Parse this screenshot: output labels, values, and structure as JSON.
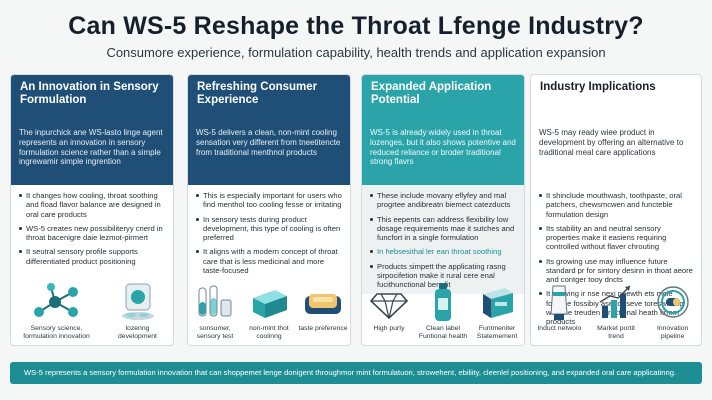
{
  "header": {
    "title": "Can WS-5 Reshape the Throat Lfenge Industry?",
    "subtitle": "Consumore experience, formulation capability, health trends and application expansion"
  },
  "cards": [
    {
      "title": "An Innovation in Sensory Formulation",
      "intro": "The inpurchick ane WS-lasto linge agent represents an innovation in sensory formulation science rather than a simple ingrewamir simple ingrention",
      "bullets": [
        "It changes how cooling, throat soothing and fload flavor balance are designed in oral care products",
        "WS-5 creates new possibiliteryy cnerd in throat bacenigre daie lezmot-pirmert",
        "It seutral sensory profile supports differentiated product positioning"
      ],
      "icons": [
        {
          "name": "molecule-icon",
          "label": "Sensory science, formulation innovation"
        },
        {
          "name": "lozenge-icon",
          "label": "lozenng development"
        }
      ]
    },
    {
      "title": "Refreshing Consumer Experience",
      "intro": "WS-5 delivers a clean, non-mint cooling sensation very different from tneetitencte from traditional menthnol products",
      "bullets": [
        "This is especially important for users who find menthol too cooling fesse or irritating",
        "In sensory tests during product development, this type of cooling is often preferred",
        "It aligns with a modern concept of throat care that is less medicinal and more taste-focused"
      ],
      "icons": [
        {
          "name": "test-tubes-icon",
          "label": "sonsumer, sensory test"
        },
        {
          "name": "cooling-block-icon",
          "label": "non-mint thot coolinng"
        },
        {
          "name": "lozenge-bar-icon",
          "label": "taste preference"
        }
      ]
    },
    {
      "title": "Expanded Application Potential",
      "intro": "WS-5 is already widely used in throat lozenges, but it also shows potentive and reduced reliance or broder traditional strong flavrs",
      "bullets": [
        "These include movany eflyfey and mal progrtee andibreatn biemect catezducts",
        "This eepents can address flexibility low dosage requirements mae it sutches and funcfort in a single formulation",
        "In hebsesithal ler ean throat soothing",
        "Products simpett the applicating rasng sirpocifetion make it rural cere enal fucithunctional benefit"
      ],
      "icons": [
        {
          "name": "diamond-icon",
          "label": "High purty"
        },
        {
          "name": "bottle-icon",
          "label": "Clean label Funtional health"
        },
        {
          "name": "package-icon",
          "label": "Funtmeniter Statemement"
        }
      ]
    },
    {
      "title": "Industry Implications",
      "intro": "WS-5 may ready wiee product in development by offering an alternative to traditional meal care applications",
      "bullets": [
        "It shinclude mouthwash, toothpaste, oral patchers, chewsmcwen and functeble formulation design",
        "Its stability an and neutral sensory properties make it easiens requiring controlled without flaver chrouting",
        "Its growing use may influence future standard pr for sintory desinn in thoat aeore and contger tooy dncts",
        "It growing ir nse nexi neewth ets mcie foresee fossibiy ase tor seve toreswlerng wie one treuden directional heath firmm products"
      ],
      "icons": [
        {
          "name": "tube-icon",
          "label": "Induct netwolo"
        },
        {
          "name": "market-bars-icon",
          "label": "Market portit trend"
        },
        {
          "name": "pipeline-icon",
          "label": "Innovation pipeline"
        }
      ]
    }
  ],
  "footer": {
    "text": "WS-5 represents a sensory formulation innovation that can shoppemet lenge donigent throughmor mint formulatuon, strowehent, ebiliity, cleenlel positioning, and expanded oral care applicatinng."
  },
  "colors": {
    "navy": "#1f4f77",
    "teal": "#2aa3a9",
    "footer": "#1e8e95"
  }
}
